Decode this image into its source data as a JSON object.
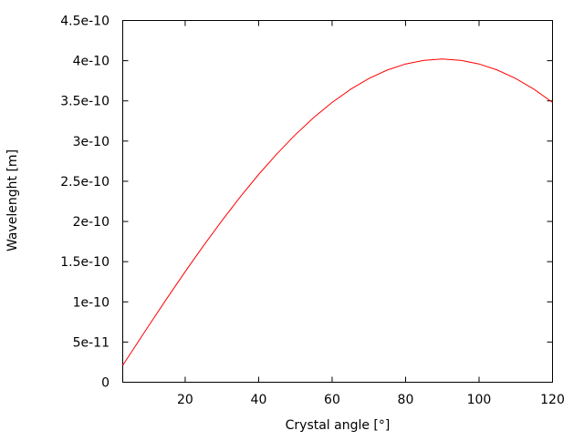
{
  "chart_data": {
    "type": "line",
    "xlabel": "Crystal angle [°]",
    "ylabel": "Wavelenght [m]",
    "xlim": [
      3,
      120
    ],
    "ylim": [
      0,
      4.5e-10
    ],
    "grid": false,
    "x_ticks": [
      20,
      40,
      60,
      80,
      100,
      120
    ],
    "x_tick_labels": [
      "20",
      "40",
      "60",
      "80",
      "100",
      "120"
    ],
    "y_ticks": [
      0,
      5e-11,
      1e-10,
      1.5e-10,
      2e-10,
      2.5e-10,
      3e-10,
      3.5e-10,
      4e-10,
      4.5e-10
    ],
    "y_tick_labels": [
      "0",
      "5e-11",
      "1e-10",
      "1.5e-10",
      "2e-10",
      "2.5e-10",
      "3e-10",
      "3.5e-10",
      "4e-10",
      "4.5e-10"
    ],
    "series": [
      {
        "color": "#ff0000",
        "x": [
          3,
          5,
          10,
          15,
          20,
          25,
          30,
          35,
          40,
          45,
          50,
          55,
          60,
          65,
          70,
          75,
          80,
          85,
          90,
          95,
          100,
          105,
          110,
          115,
          120
        ],
        "y": [
          2.1e-11,
          3.5e-11,
          6.98e-11,
          1.04e-10,
          1.375e-10,
          1.699e-10,
          2.01e-10,
          2.306e-10,
          2.584e-10,
          2.843e-10,
          3.08e-10,
          3.293e-10,
          3.481e-10,
          3.643e-10,
          3.778e-10,
          3.883e-10,
          3.959e-10,
          4.005e-10,
          4.02e-10,
          4.005e-10,
          3.959e-10,
          3.883e-10,
          3.778e-10,
          3.643e-10,
          3.481e-10
        ]
      }
    ]
  }
}
